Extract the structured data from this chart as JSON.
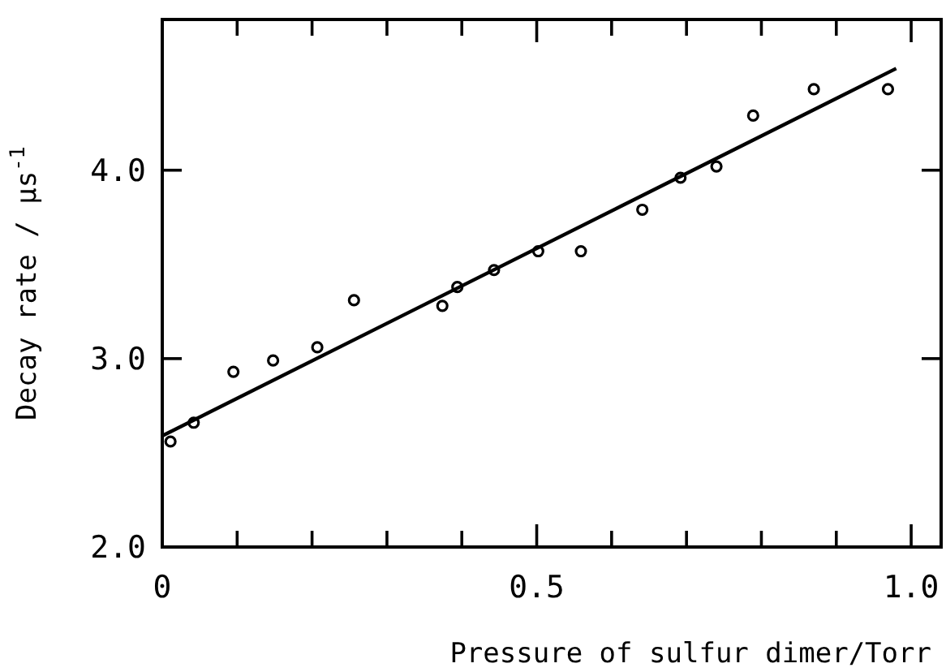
{
  "chart_data": {
    "type": "scatter",
    "xlabel": "Pressure of sulfur dimer/Torr",
    "ylabel": "Decay rate / μs$^{-1}$",
    "xlim": [
      0,
      1.04
    ],
    "ylim": [
      2.0,
      4.8
    ],
    "xticks": [
      0,
      {
        "value": 0.1,
        "label": null
      },
      {
        "value": 0.2,
        "label": null
      },
      {
        "value": 0.3,
        "label": null
      },
      {
        "value": 0.4,
        "label": null
      },
      {
        "value": 0.5,
        "label": "0.5"
      },
      {
        "value": 0.6,
        "label": null
      },
      {
        "value": 0.7,
        "label": null
      },
      {
        "value": 0.8,
        "label": null
      },
      {
        "value": 0.9,
        "label": null
      },
      {
        "value": 1.0,
        "label": "1.0"
      }
    ],
    "yticks": [
      {
        "value": 2.0,
        "label": "2.0"
      },
      {
        "value": 3.0,
        "label": "3.0"
      },
      {
        "value": 4.0,
        "label": "4.0"
      }
    ],
    "marker": "circle",
    "grid": false,
    "series": [
      {
        "color": "#000000",
        "x": [
          0.011,
          0.042,
          0.095,
          0.148,
          0.207,
          0.256,
          0.374,
          0.394,
          0.443,
          0.502,
          0.559,
          0.641,
          0.692,
          0.74,
          0.789,
          0.87,
          0.969
        ],
        "values": [
          2.56,
          2.66,
          2.93,
          2.99,
          3.06,
          3.31,
          3.28,
          3.38,
          3.47,
          3.57,
          3.57,
          3.79,
          3.96,
          4.02,
          4.29,
          4.43,
          4.43
        ]
      },
      {
        "type": "line",
        "color": "#000000",
        "marker": "none",
        "line_style": "solid",
        "x": [
          0,
          0.98
        ],
        "values": [
          2.59,
          4.54
        ]
      }
    ]
  }
}
